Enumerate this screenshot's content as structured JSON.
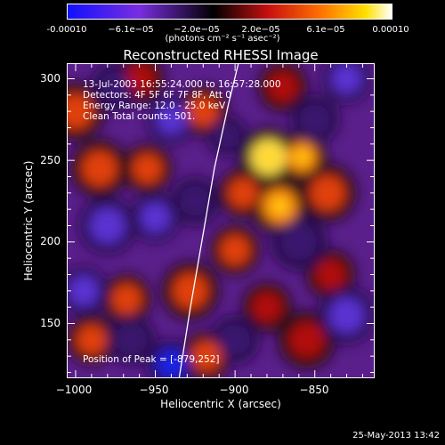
{
  "colorbar": {
    "ticks": [
      "-0.00010",
      "−6.1e−05",
      "−2.0e−05",
      "2.0e−05",
      "6.1e−05",
      "0.00010"
    ],
    "units": "(photons cm⁻² s⁻¹ asec⁻²)",
    "range": [
      -0.0001,
      0.0001
    ]
  },
  "chart_data": {
    "type": "heatmap",
    "title": "Reconstructed RHESSI Image",
    "xlabel": "Heliocentric X (arcsec)",
    "ylabel": "Heliocentric Y (arcsec)",
    "xlim": [
      -1005,
      -813
    ],
    "ylim": [
      117,
      309
    ],
    "xticks": [
      "−1000",
      "−950",
      "−900",
      "−850"
    ],
    "xtick_values": [
      -1000,
      -950,
      -900,
      -850
    ],
    "yticks": [
      "150",
      "200",
      "250",
      "300"
    ],
    "ytick_values": [
      150,
      200,
      250,
      300
    ],
    "annotations": [
      "13-Jul-2003 16:55:24.000 to 16:57:28.000",
      "Detectors: 4F 5F 6F 7F 8F, Att 0",
      "Energy Range: 12.0 - 25.0 keV",
      "Clean    Total counts: 501."
    ],
    "peak_label": "Position of Peak = [-879,252]",
    "peak": [
      -879,
      252
    ],
    "limb": [
      [
        -935,
        117
      ],
      [
        -928,
        160
      ],
      [
        -920,
        205
      ],
      [
        -913,
        245
      ],
      [
        -904,
        285
      ],
      [
        -898,
        309
      ]
    ],
    "blobs": [
      {
        "x": -879,
        "y": 252,
        "v": 1.0,
        "r": 7
      },
      {
        "x": -858,
        "y": 252,
        "v": 0.85,
        "r": 6
      },
      {
        "x": -872,
        "y": 222,
        "v": 0.7,
        "r": 7
      },
      {
        "x": -895,
        "y": 230,
        "v": 0.6,
        "r": 6
      },
      {
        "x": -842,
        "y": 230,
        "v": 0.65,
        "r": 7
      },
      {
        "x": -955,
        "y": 245,
        "v": 0.55,
        "r": 6
      },
      {
        "x": -985,
        "y": 245,
        "v": 0.55,
        "r": 7
      },
      {
        "x": -1000,
        "y": 280,
        "v": 0.6,
        "r": 7
      },
      {
        "x": -928,
        "y": 170,
        "v": 0.55,
        "r": 7
      },
      {
        "x": -968,
        "y": 165,
        "v": 0.5,
        "r": 6
      },
      {
        "x": -990,
        "y": 140,
        "v": 0.5,
        "r": 6
      },
      {
        "x": -855,
        "y": 140,
        "v": 0.45,
        "r": 7
      },
      {
        "x": -880,
        "y": 160,
        "v": 0.45,
        "r": 6
      },
      {
        "x": -918,
        "y": 130,
        "v": 0.5,
        "r": 6
      },
      {
        "x": -840,
        "y": 180,
        "v": 0.45,
        "r": 6
      },
      {
        "x": -900,
        "y": 195,
        "v": 0.55,
        "r": 6
      },
      {
        "x": -960,
        "y": 300,
        "v": 0.4,
        "r": 6
      },
      {
        "x": -920,
        "y": 280,
        "v": 0.5,
        "r": 6
      },
      {
        "x": -870,
        "y": 295,
        "v": 0.45,
        "r": 6
      },
      {
        "x": -940,
        "y": 125,
        "v": -0.9,
        "r": 6
      },
      {
        "x": -980,
        "y": 210,
        "v": -0.7,
        "r": 7
      },
      {
        "x": -950,
        "y": 215,
        "v": -0.6,
        "r": 6
      },
      {
        "x": -940,
        "y": 275,
        "v": -0.55,
        "r": 6
      },
      {
        "x": -995,
        "y": 170,
        "v": -0.6,
        "r": 6
      },
      {
        "x": -860,
        "y": 200,
        "v": -0.5,
        "r": 7
      },
      {
        "x": -830,
        "y": 300,
        "v": -0.55,
        "r": 6
      },
      {
        "x": -830,
        "y": 155,
        "v": -0.6,
        "r": 7
      },
      {
        "x": -900,
        "y": 140,
        "v": -0.5,
        "r": 6
      },
      {
        "x": -975,
        "y": 295,
        "v": -0.45,
        "r": 6
      },
      {
        "x": -905,
        "y": 265,
        "v": -0.4,
        "r": 5
      },
      {
        "x": -850,
        "y": 275,
        "v": -0.5,
        "r": 6
      },
      {
        "x": -925,
        "y": 225,
        "v": -0.45,
        "r": 6
      },
      {
        "x": -965,
        "y": 140,
        "v": -0.5,
        "r": 6
      }
    ]
  },
  "footer": "25-May-2013 13:42"
}
